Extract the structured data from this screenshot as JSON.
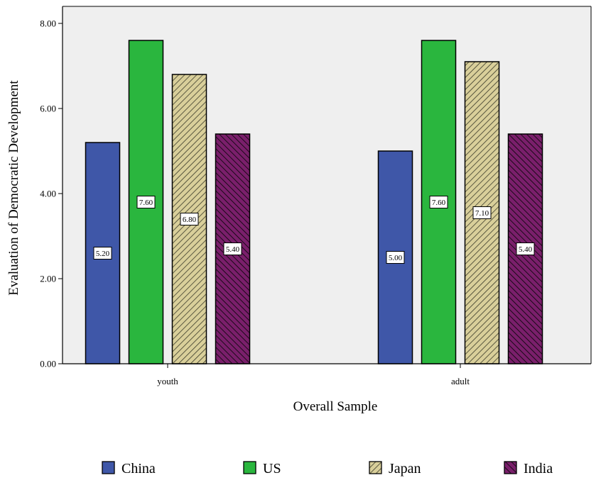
{
  "chart_data": {
    "type": "bar",
    "categories": [
      "youth",
      "adult"
    ],
    "series": [
      {
        "name": "China",
        "values": [
          5.2,
          5.0
        ],
        "color": "#3f57a8",
        "pattern": "solid"
      },
      {
        "name": "US",
        "values": [
          7.6,
          7.6
        ],
        "color": "#2ab63e",
        "pattern": "solid"
      },
      {
        "name": "Japan",
        "values": [
          6.8,
          7.1
        ],
        "color": "#d9cf9a",
        "pattern": "hatch-right"
      },
      {
        "name": "India",
        "values": [
          5.4,
          5.4
        ],
        "color": "#7a1f6b",
        "pattern": "hatch-left"
      }
    ],
    "data_labels": [
      [
        "5.20",
        "5.00"
      ],
      [
        "7.60",
        "7.60"
      ],
      [
        "6.80",
        "7.10"
      ],
      [
        "5.40",
        "5.40"
      ]
    ],
    "yticks": [
      "0.00",
      "2.00",
      "4.00",
      "6.00",
      "8.00"
    ],
    "ylim": [
      0,
      8.4
    ],
    "xlabel": "Overall Sample",
    "ylabel": "Evaluation of Democratic Development",
    "legend_position": "bottom",
    "plot_background": "#efefef",
    "grid": false
  }
}
